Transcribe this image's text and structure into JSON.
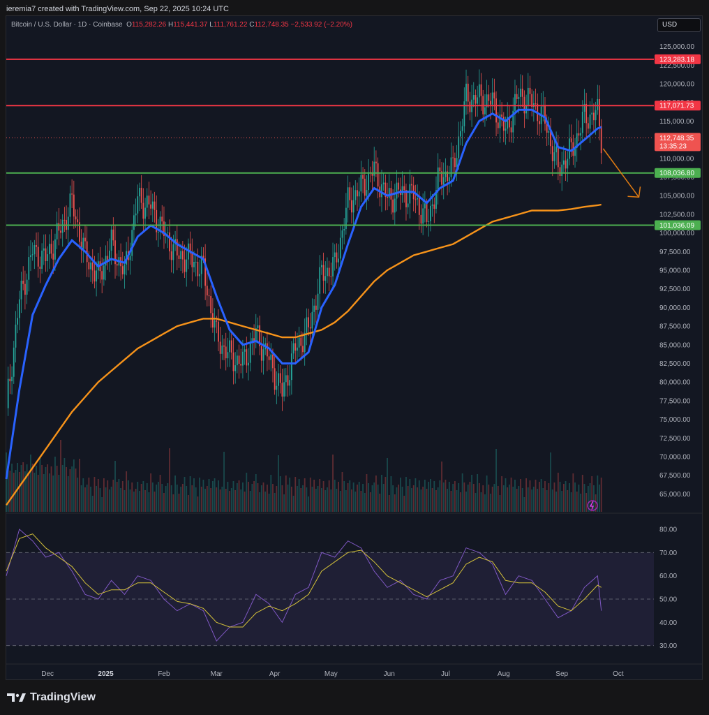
{
  "header": {
    "author_line": "ieremia7 created with TradingView.com, Sep 22, 2025 10:24 UTC"
  },
  "symbol": {
    "name": "Bitcoin / U.S. Dollar · 1D · Coinbase",
    "o_label": "O",
    "o": "115,282.26",
    "h_label": "H",
    "h": "115,441.37",
    "l_label": "L",
    "l": "111,761.22",
    "c_label": "C",
    "c": "112,748.35",
    "change": "−2,533.92 (−2.20%)"
  },
  "currency_button": "USD",
  "brand": "TradingView",
  "colors": {
    "up": "#26a69a",
    "down": "#ef5350",
    "ema_fast": "#2962ff",
    "ema_slow": "#f7931a",
    "resistance": "#f23645",
    "support": "#4caf50",
    "rsi": "#7e57c2",
    "rsi_ma": "#d4c13a",
    "arrow": "#e07b12"
  },
  "chart_data": [
    {
      "type": "line",
      "title": "",
      "series": [
        {
          "name": "",
          "x": [
            "2024-11-09",
            "2024-11-16",
            "2024-11-23",
            "2024-11-30",
            "2024-12-07",
            "2024-12-14",
            "2024-12-21",
            "2024-12-28",
            "2025-01-04",
            "2025-01-11",
            "2025-01-18",
            "2025-01-25",
            "2025-02-01",
            "2025-02-08",
            "2025-02-15",
            "2025-02-22",
            "2025-03-01",
            "2025-03-08",
            "2025-03-15",
            "2025-03-22",
            "2025-03-29",
            "2025-04-05",
            "2025-04-12",
            "2025-04-19",
            "2025-04-26",
            "2025-05-03",
            "2025-05-10",
            "2025-05-17",
            "2025-05-24",
            "2025-05-31",
            "2025-06-07",
            "2025-06-14",
            "2025-06-21",
            "2025-06-28",
            "2025-07-05",
            "2025-07-12",
            "2025-07-19",
            "2025-07-26",
            "2025-08-02",
            "2025-08-09",
            "2025-08-16",
            "2025-08-23",
            "2025-08-30",
            "2025-09-06",
            "2025-09-13",
            "2025-09-20",
            "2025-09-22"
          ],
          "values": [
            76500,
            91000,
            97500,
            96500,
            100000,
            104000,
            97000,
            94000,
            98500,
            94500,
            104500,
            103500,
            100000,
            97000,
            96500,
            95000,
            86000,
            83500,
            82500,
            86500,
            83000,
            78500,
            84500,
            87000,
            94500,
            95500,
            104000,
            106000,
            108500,
            104500,
            105500,
            105000,
            101500,
            107500,
            108500,
            118000,
            118000,
            117500,
            113500,
            118500,
            117500,
            115000,
            108500,
            111000,
            115500,
            116000,
            112748
          ]
        },
        {
          "name": "",
          "values": [
            67000,
            79000,
            89000,
            93000,
            96500,
            99000,
            97500,
            95500,
            96500,
            96000,
            99500,
            101000,
            100000,
            98500,
            97500,
            96500,
            91500,
            87000,
            85000,
            85500,
            84500,
            82500,
            82500,
            84000,
            90000,
            93000,
            98500,
            103500,
            106000,
            105000,
            105500,
            105500,
            104000,
            106000,
            107000,
            112000,
            115000,
            116000,
            115000,
            116500,
            116500,
            115500,
            111500,
            111000,
            112500,
            114000,
            114200
          ]
        },
        {
          "name": "",
          "values": [
            63500,
            66000,
            68500,
            71000,
            73500,
            76000,
            78000,
            80000,
            81500,
            83000,
            84500,
            85500,
            86500,
            87500,
            88000,
            88500,
            88500,
            88000,
            87500,
            87000,
            86500,
            86000,
            86000,
            86500,
            87000,
            88000,
            89500,
            91500,
            93500,
            95000,
            96000,
            97000,
            97500,
            98000,
            98500,
            99500,
            100500,
            101500,
            102000,
            102500,
            103000,
            103000,
            103000,
            103200,
            103500,
            103700,
            103800
          ]
        }
      ],
      "horizontal_levels": [
        {
          "value": 123283.18,
          "label": "123,283.18",
          "kind": "resistance"
        },
        {
          "value": 117071.73,
          "label": "117,071.73",
          "kind": "resistance"
        },
        {
          "value": 108036.8,
          "label": "108,036.80",
          "kind": "support"
        },
        {
          "value": 101036.09,
          "label": "101,036.09",
          "kind": "support"
        }
      ],
      "last_price": {
        "value": 112748.35,
        "label": "112,748.35",
        "countdown": "13:35:23"
      },
      "y_ticks": [
        "65,000.00",
        "67,500.00",
        "70,000.00",
        "72,500.00",
        "75,000.00",
        "77,500.00",
        "80,000.00",
        "82,500.00",
        "85,000.00",
        "87,500.00",
        "90,000.00",
        "92,500.00",
        "95,000.00",
        "97,500.00",
        "100,000.00",
        "102,500.00",
        "105,000.00",
        "107,500.00",
        "110,000.00",
        "112,500.00",
        "115,000.00",
        "117,500.00",
        "120,000.00",
        "122,500.00",
        "125,000.00"
      ],
      "ylim": [
        65000,
        125000
      ],
      "annotation": "projected-decline-arrow",
      "grid": false
    },
    {
      "type": "line",
      "title": "",
      "series": [
        {
          "name": "",
          "values": [
            60,
            80,
            75,
            68,
            70,
            62,
            52,
            50,
            58,
            52,
            60,
            58,
            50,
            45,
            48,
            45,
            32,
            38,
            40,
            52,
            48,
            40,
            52,
            55,
            70,
            68,
            75,
            72,
            62,
            55,
            58,
            52,
            50,
            58,
            60,
            72,
            70,
            65,
            52,
            60,
            58,
            50,
            42,
            45,
            55,
            60,
            45
          ]
        },
        {
          "name": "",
          "values": [
            62,
            76,
            78,
            72,
            68,
            64,
            57,
            52,
            54,
            54,
            57,
            57,
            53,
            49,
            48,
            46,
            40,
            38,
            38,
            44,
            47,
            45,
            48,
            52,
            62,
            66,
            70,
            71,
            66,
            60,
            57,
            54,
            51,
            54,
            57,
            65,
            68,
            66,
            58,
            57,
            57,
            53,
            47,
            45,
            50,
            56,
            55
          ]
        }
      ],
      "y_ticks": [
        "30.00",
        "40.00",
        "50.00",
        "60.00",
        "70.00",
        "80.00"
      ],
      "bands": [
        30,
        50,
        70
      ],
      "ylim": [
        25,
        85
      ]
    }
  ],
  "x_ticks": [
    "Dec",
    "2025",
    "Feb",
    "Mar",
    "Apr",
    "May",
    "Jun",
    "Jul",
    "Aug",
    "Sep",
    "Oct"
  ]
}
